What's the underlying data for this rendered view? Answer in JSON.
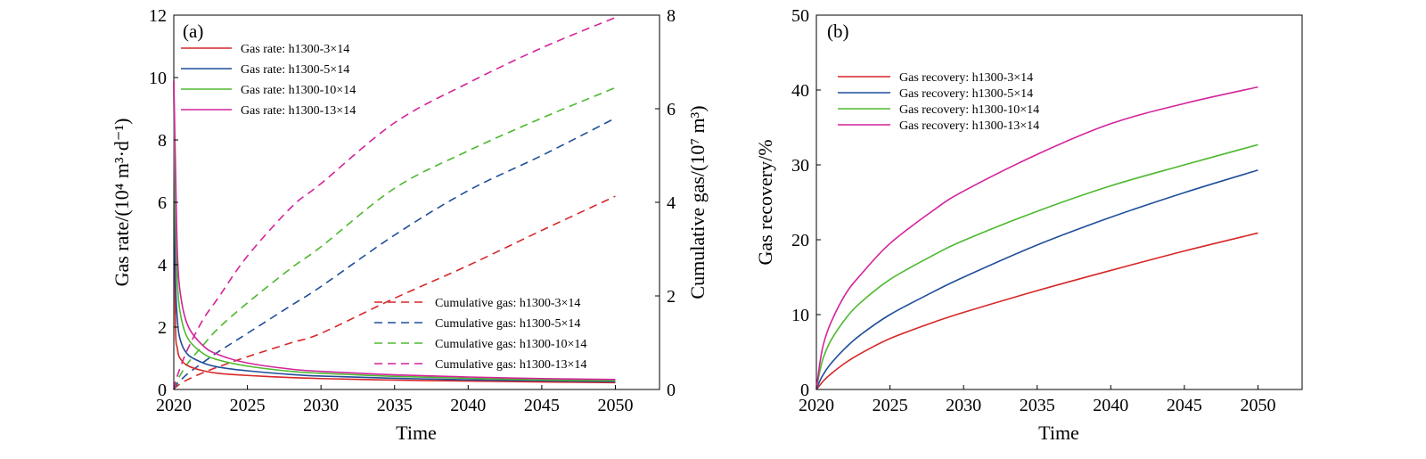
{
  "chart_data": [
    {
      "type": "line",
      "panel_label": "(a)",
      "xlabel": "Time",
      "ylabel_left": "Gas rate/(10⁴ m³·d⁻¹)",
      "ylabel_right": "Cumulative gas/(10⁷ m³)",
      "x_ticks": [
        "2020",
        "2025",
        "2030",
        "2035",
        "2040",
        "2045",
        "2050"
      ],
      "y_ticks_left": [
        "0",
        "2",
        "4",
        "6",
        "8",
        "10",
        "12"
      ],
      "y_ticks_right": [
        "0",
        "2",
        "4",
        "6",
        "8"
      ],
      "xlim": [
        2020,
        2053
      ],
      "ylim_left": [
        0,
        12
      ],
      "ylim_right": [
        0,
        8
      ],
      "grid": false,
      "legend_gas_rate_position": "top-left",
      "legend_cumulative_position": "bottom-right",
      "x": [
        2020.0,
        2020.1,
        2020.25,
        2020.5,
        2021,
        2022,
        2023,
        2025,
        2028,
        2030,
        2035,
        2040,
        2045,
        2050
      ],
      "series": [
        {
          "name": "Gas rate: h1300-3×14",
          "axis": "left",
          "style": "solid",
          "color": "#d62728",
          "values": [
            9.9,
            2.5,
            1.3,
            0.95,
            0.75,
            0.6,
            0.52,
            0.45,
            0.38,
            0.35,
            0.3,
            0.27,
            0.24,
            0.22
          ]
        },
        {
          "name": "Gas rate: h1300-5×14",
          "axis": "left",
          "style": "solid",
          "color": "#1f4e9a",
          "values": [
            9.9,
            4.0,
            2.2,
            1.5,
            1.1,
            0.85,
            0.72,
            0.6,
            0.48,
            0.43,
            0.36,
            0.31,
            0.28,
            0.25
          ]
        },
        {
          "name": "Gas rate: h1300-10×14",
          "axis": "left",
          "style": "solid",
          "color": "#4db830",
          "values": [
            9.9,
            6.0,
            3.4,
            2.3,
            1.6,
            1.15,
            0.95,
            0.75,
            0.58,
            0.52,
            0.42,
            0.36,
            0.31,
            0.28
          ]
        },
        {
          "name": "Gas rate: h1300-13×14",
          "axis": "left",
          "style": "solid",
          "color": "#d4239b",
          "values": [
            9.9,
            7.5,
            4.3,
            2.9,
            2.0,
            1.4,
            1.12,
            0.85,
            0.65,
            0.58,
            0.47,
            0.4,
            0.35,
            0.32
          ]
        },
        {
          "name": "Cumulative gas: h1300-3×14",
          "axis": "right",
          "style": "dashed",
          "color": "#d62728",
          "values": [
            0,
            0.04,
            0.08,
            0.13,
            0.22,
            0.36,
            0.48,
            0.7,
            1.0,
            1.2,
            1.95,
            2.65,
            3.4,
            4.13
          ]
        },
        {
          "name": "Cumulative gas: h1300-5×14",
          "axis": "right",
          "style": "dashed",
          "color": "#1f4e9a",
          "values": [
            0,
            0.07,
            0.13,
            0.21,
            0.35,
            0.58,
            0.8,
            1.2,
            1.8,
            2.2,
            3.3,
            4.25,
            5.0,
            5.8
          ]
        },
        {
          "name": "Cumulative gas: h1300-10×14",
          "axis": "right",
          "style": "dashed",
          "color": "#4db830",
          "values": [
            0,
            0.1,
            0.2,
            0.34,
            0.58,
            0.95,
            1.3,
            1.85,
            2.6,
            3.05,
            4.3,
            5.1,
            5.8,
            6.45
          ]
        },
        {
          "name": "Cumulative gas: h1300-13×14",
          "axis": "right",
          "style": "dashed",
          "color": "#d4239b",
          "values": [
            0,
            0.15,
            0.3,
            0.52,
            0.9,
            1.5,
            1.95,
            2.85,
            3.9,
            4.4,
            5.7,
            6.55,
            7.3,
            7.95
          ]
        }
      ]
    },
    {
      "type": "line",
      "panel_label": "(b)",
      "xlabel": "Time",
      "ylabel": "Gas recovery/%",
      "x_ticks": [
        "2020",
        "2025",
        "2030",
        "2035",
        "2040",
        "2045",
        "2050"
      ],
      "y_ticks": [
        "0",
        "10",
        "20",
        "30",
        "40",
        "50"
      ],
      "xlim": [
        2020,
        2053
      ],
      "ylim": [
        0,
        50
      ],
      "grid": false,
      "legend_position": "top-left",
      "x": [
        2020.0,
        2020.25,
        2020.5,
        2021,
        2022,
        2023,
        2025,
        2028,
        2030,
        2035,
        2040,
        2045,
        2050
      ],
      "series": [
        {
          "name": "Gas recovery: h1300-3×14",
          "color": "#d62728",
          "values": [
            0,
            0.6,
            1.2,
            2.1,
            3.6,
            4.8,
            6.8,
            9.0,
            10.3,
            13.2,
            15.9,
            18.5,
            20.9
          ]
        },
        {
          "name": "Gas recovery: h1300-5×14",
          "color": "#1f4e9a",
          "values": [
            0,
            1.2,
            2.1,
            3.5,
            5.6,
            7.3,
            10.0,
            13.1,
            15.0,
            19.3,
            23.0,
            26.3,
            29.3
          ]
        },
        {
          "name": "Gas recovery: h1300-10×14",
          "color": "#4db830",
          "values": [
            0,
            2.6,
            4.4,
            6.6,
            9.5,
            11.6,
            14.7,
            18.0,
            19.9,
            23.8,
            27.2,
            30.0,
            32.7
          ]
        },
        {
          "name": "Gas recovery: h1300-13×14",
          "color": "#d4239b",
          "values": [
            0,
            3.7,
            6.2,
            9.0,
            12.8,
            15.3,
            19.5,
            24.0,
            26.5,
            31.4,
            35.5,
            38.2,
            40.4
          ]
        }
      ]
    }
  ]
}
